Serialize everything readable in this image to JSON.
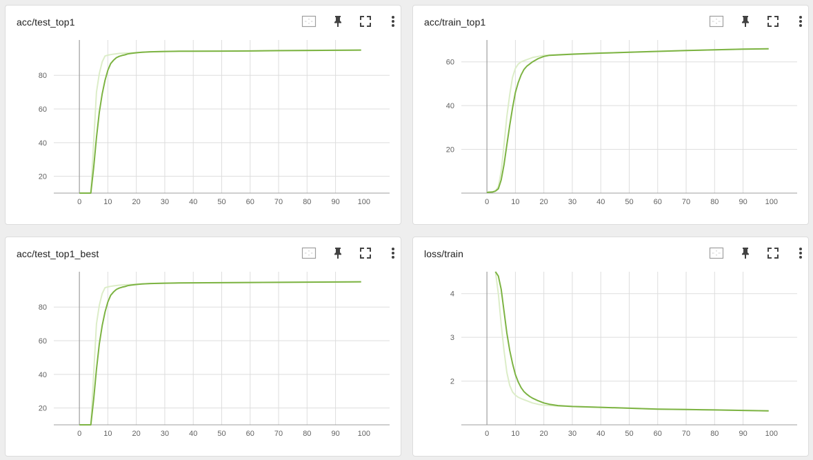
{
  "colors": {
    "smoothed": "#7cb342",
    "raw": "#dcedc8",
    "grid": "#dddddd",
    "axis": "#9e9e9e",
    "icon": "#424242"
  },
  "toolbar_icons": [
    "fit-domain-icon",
    "pin-icon",
    "fullscreen-icon",
    "more-vert-icon"
  ],
  "chart_data": [
    {
      "type": "line",
      "title": "acc/test_top1",
      "xlabel": "",
      "ylabel": "",
      "xlim": [
        -9,
        109
      ],
      "ylim": [
        10,
        101
      ],
      "xticks": [
        0,
        10,
        20,
        30,
        40,
        50,
        60,
        70,
        80,
        90,
        100
      ],
      "yticks": [
        20,
        40,
        60,
        80
      ],
      "series": [
        {
          "x": [
            0,
            3,
            4,
            5,
            6,
            7,
            8,
            9,
            10,
            11,
            12,
            14,
            16,
            18,
            20,
            25,
            30,
            40,
            50,
            60,
            70,
            80,
            90,
            99
          ],
          "y": [
            10,
            10,
            10,
            40,
            70,
            81,
            88,
            91.5,
            92,
            92.3,
            92.6,
            93,
            93.2,
            93.3,
            93.5,
            94,
            94.2,
            94.3,
            94.4,
            94.5,
            94.6,
            94.7,
            94.9,
            95
          ]
        },
        {
          "x": [
            0,
            3,
            4,
            5,
            6,
            7,
            8,
            9,
            10,
            11,
            12,
            13,
            14,
            15,
            16,
            17,
            18,
            20,
            22,
            25,
            30,
            35,
            40,
            50,
            60,
            70,
            80,
            90,
            99
          ],
          "y": [
            10,
            10,
            10,
            25,
            43,
            58,
            69,
            77,
            83,
            87,
            89,
            90.5,
            91.3,
            91.8,
            92.2,
            92.7,
            93,
            93.4,
            93.7,
            94,
            94.2,
            94.3,
            94.3,
            94.4,
            94.5,
            94.7,
            94.8,
            94.9,
            95
          ]
        }
      ]
    },
    {
      "type": "line",
      "title": "acc/train_top1",
      "xlabel": "",
      "ylabel": "",
      "xlim": [
        -9,
        109
      ],
      "ylim": [
        0,
        70
      ],
      "xticks": [
        0,
        10,
        20,
        30,
        40,
        50,
        60,
        70,
        80,
        90,
        100
      ],
      "yticks": [
        20,
        40,
        60
      ],
      "series": [
        {
          "x": [
            0,
            2,
            3,
            4,
            5,
            6,
            7,
            8,
            9,
            10,
            11,
            12,
            14,
            16,
            18,
            20,
            25,
            30,
            40,
            50,
            60,
            70,
            80,
            90,
            99
          ],
          "y": [
            0.5,
            0.6,
            1,
            3,
            10,
            22,
            35,
            45,
            53,
            57,
            59,
            60,
            61,
            62,
            62.5,
            63,
            63.3,
            63.6,
            64,
            64.4,
            64.8,
            65.2,
            65.5,
            65.8,
            66
          ]
        },
        {
          "x": [
            0,
            2,
            3,
            4,
            5,
            6,
            7,
            8,
            9,
            10,
            11,
            12,
            13,
            14,
            16,
            18,
            20,
            22,
            25,
            30,
            40,
            50,
            60,
            70,
            80,
            90,
            99
          ],
          "y": [
            0.3,
            0.5,
            0.9,
            2,
            6,
            13,
            22,
            31,
            39,
            46,
            50.5,
            54,
            56.5,
            58,
            60,
            61.5,
            62.5,
            63,
            63.2,
            63.5,
            64,
            64.4,
            64.8,
            65.2,
            65.5,
            65.8,
            66
          ]
        }
      ]
    },
    {
      "type": "line",
      "title": "acc/test_top1_best",
      "xlabel": "",
      "ylabel": "",
      "xlim": [
        -9,
        109
      ],
      "ylim": [
        10,
        101
      ],
      "xticks": [
        0,
        10,
        20,
        30,
        40,
        50,
        60,
        70,
        80,
        90,
        100
      ],
      "yticks": [
        20,
        40,
        60,
        80
      ],
      "series": [
        {
          "x": [
            0,
            3,
            4,
            5,
            6,
            7,
            8,
            9,
            10,
            11,
            12,
            14,
            16,
            18,
            20,
            25,
            30,
            40,
            50,
            60,
            70,
            80,
            90,
            99
          ],
          "y": [
            10,
            10,
            10,
            40,
            70,
            81,
            88,
            91.5,
            92,
            92.3,
            92.6,
            93,
            93.2,
            93.4,
            93.6,
            94,
            94.2,
            94.4,
            94.5,
            94.6,
            94.7,
            94.8,
            94.9,
            95
          ]
        },
        {
          "x": [
            0,
            3,
            4,
            5,
            6,
            7,
            8,
            9,
            10,
            11,
            12,
            13,
            14,
            15,
            16,
            17,
            18,
            20,
            22,
            25,
            30,
            35,
            40,
            50,
            60,
            70,
            80,
            90,
            99
          ],
          "y": [
            10,
            10,
            10,
            25,
            43,
            58,
            69,
            77,
            83,
            87,
            89,
            90.5,
            91.3,
            91.8,
            92.2,
            92.7,
            93,
            93.4,
            93.7,
            94,
            94.2,
            94.3,
            94.4,
            94.5,
            94.6,
            94.7,
            94.8,
            94.9,
            95
          ]
        }
      ]
    },
    {
      "type": "line",
      "title": "loss/train",
      "xlabel": "",
      "ylabel": "",
      "xlim": [
        -9,
        109
      ],
      "ylim": [
        1,
        4.5
      ],
      "xticks": [
        0,
        10,
        20,
        30,
        40,
        50,
        60,
        70,
        80,
        90,
        100
      ],
      "yticks": [
        2,
        3,
        4
      ],
      "series": [
        {
          "x": [
            3,
            4,
            5,
            6,
            7,
            8,
            9,
            10,
            11,
            12,
            14,
            16,
            18,
            20,
            25,
            30,
            40,
            50,
            60,
            70,
            80,
            90,
            99
          ],
          "y": [
            4.5,
            4.0,
            3.3,
            2.7,
            2.2,
            1.9,
            1.75,
            1.68,
            1.63,
            1.6,
            1.55,
            1.5,
            1.47,
            1.45,
            1.43,
            1.42,
            1.4,
            1.38,
            1.36,
            1.35,
            1.34,
            1.33,
            1.32
          ]
        },
        {
          "x": [
            3,
            4,
            5,
            6,
            7,
            8,
            9,
            10,
            11,
            12,
            13,
            14,
            15,
            16,
            18,
            20,
            22,
            25,
            30,
            40,
            50,
            60,
            70,
            80,
            90,
            99
          ],
          "y": [
            4.5,
            4.4,
            4.1,
            3.6,
            3.1,
            2.7,
            2.4,
            2.15,
            1.98,
            1.85,
            1.76,
            1.7,
            1.65,
            1.61,
            1.55,
            1.5,
            1.47,
            1.44,
            1.42,
            1.4,
            1.38,
            1.36,
            1.35,
            1.34,
            1.33,
            1.32
          ]
        }
      ]
    }
  ]
}
